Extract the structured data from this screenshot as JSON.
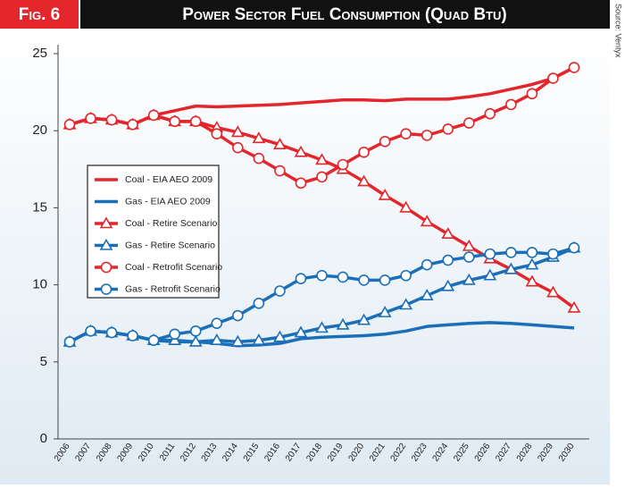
{
  "figure": "Fig. 6",
  "source": "Source: Ventyx",
  "chart_data": {
    "type": "line",
    "title": "Power Sector Fuel Consumption (Quad Btu)",
    "categories": [
      "2006",
      "2007",
      "2008",
      "2009",
      "2010",
      "2011",
      "2012",
      "2013",
      "2014",
      "2015",
      "2016",
      "2017",
      "2018",
      "2019",
      "2020",
      "2021",
      "2022",
      "2023",
      "2024",
      "2025",
      "2026",
      "2027",
      "2028",
      "2029",
      "2030"
    ],
    "ylim": [
      0,
      25
    ],
    "yticks": [
      0,
      5,
      10,
      15,
      20,
      25
    ],
    "grid": false,
    "legend": "left",
    "series": [
      {
        "name": "Coal - EIA AEO 2009",
        "color": "#e3262b",
        "marker": "none",
        "values": [
          20.4,
          20.8,
          20.7,
          20.4,
          21.0,
          21.3,
          21.6,
          21.55,
          21.6,
          21.65,
          21.7,
          21.8,
          21.9,
          22.0,
          22.0,
          21.95,
          22.05,
          22.05,
          22.05,
          22.2,
          22.4,
          22.7,
          23.0,
          23.4,
          24.1
        ]
      },
      {
        "name": "Gas - EIA AEO 2009",
        "color": "#1b6fb8",
        "marker": "none",
        "values": [
          6.3,
          7.0,
          6.9,
          6.7,
          6.4,
          6.3,
          6.3,
          6.2,
          6.05,
          6.1,
          6.2,
          6.5,
          6.6,
          6.65,
          6.7,
          6.8,
          7.0,
          7.3,
          7.4,
          7.5,
          7.55,
          7.5,
          7.4,
          7.3,
          7.2
        ]
      },
      {
        "name": "Coal - Retire Scenario",
        "color": "#e3262b",
        "marker": "triangle",
        "values": [
          20.4,
          20.8,
          20.7,
          20.4,
          21.0,
          20.6,
          20.6,
          20.2,
          19.9,
          19.5,
          19.1,
          18.6,
          18.1,
          17.5,
          16.7,
          15.8,
          15.0,
          14.1,
          13.3,
          12.5,
          11.7,
          11.0,
          10.2,
          9.5,
          8.5
        ]
      },
      {
        "name": "Gas - Retire Scenario",
        "color": "#1b6fb8",
        "marker": "triangle",
        "values": [
          6.3,
          7.0,
          6.9,
          6.7,
          6.4,
          6.4,
          6.3,
          6.4,
          6.3,
          6.4,
          6.6,
          6.9,
          7.2,
          7.4,
          7.7,
          8.2,
          8.7,
          9.3,
          9.9,
          10.3,
          10.6,
          11.0,
          11.3,
          11.8,
          12.4
        ]
      },
      {
        "name": "Coal - Retrofit Scenario",
        "color": "#e3262b",
        "marker": "circle",
        "values": [
          20.4,
          20.8,
          20.7,
          20.4,
          21.0,
          20.6,
          20.6,
          19.8,
          18.9,
          18.2,
          17.4,
          16.6,
          17.0,
          17.8,
          18.6,
          19.3,
          19.8,
          19.7,
          20.1,
          20.5,
          21.1,
          21.7,
          22.4,
          23.4,
          24.1
        ]
      },
      {
        "name": "Gas - Retrofit Scenario",
        "color": "#1b6fb8",
        "marker": "circle",
        "values": [
          6.3,
          7.0,
          6.9,
          6.7,
          6.4,
          6.8,
          7.0,
          7.5,
          8.0,
          8.8,
          9.6,
          10.4,
          10.6,
          10.5,
          10.3,
          10.3,
          10.6,
          11.3,
          11.6,
          11.8,
          12.0,
          12.1,
          12.1,
          12.0,
          12.4
        ]
      }
    ]
  }
}
